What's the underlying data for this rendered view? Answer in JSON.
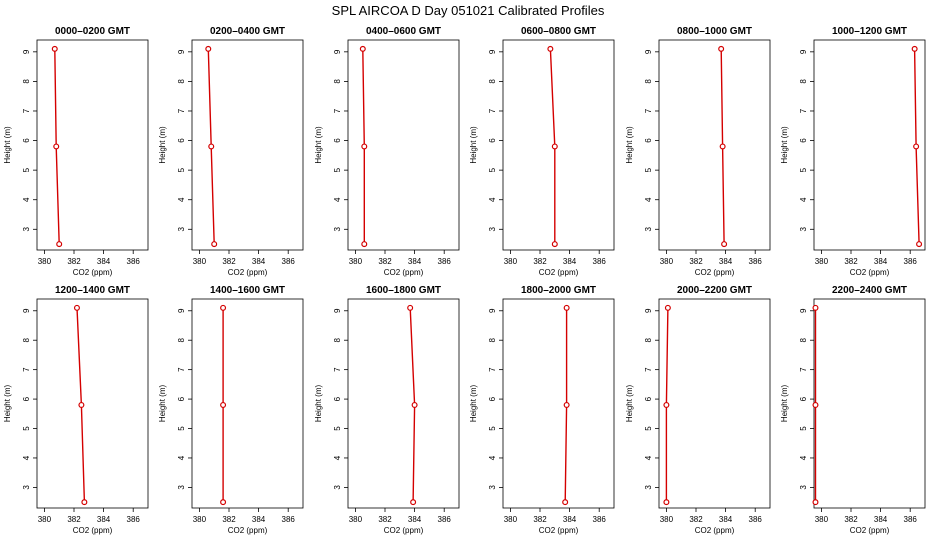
{
  "title": "SPL AIRCOA D  Day 051021  Calibrated Profiles",
  "chart_data": {
    "type": "line",
    "xlabel": "CO2 (ppm)",
    "ylabel": "Height (m)",
    "xlim": [
      379.5,
      387
    ],
    "ylim": [
      2.3,
      9.4
    ],
    "xticks": [
      380,
      382,
      384,
      386
    ],
    "yticks": [
      3,
      4,
      5,
      6,
      7,
      8,
      9
    ],
    "heights": [
      9.1,
      5.8,
      2.5
    ],
    "line_color": "#d40000",
    "panels": [
      {
        "title": "0000–0200 GMT",
        "co2": [
          380.7,
          380.8,
          381.0
        ]
      },
      {
        "title": "0200–0400 GMT",
        "co2": [
          380.6,
          380.8,
          381.0
        ]
      },
      {
        "title": "0400–0600 GMT",
        "co2": [
          380.5,
          380.6,
          380.6
        ]
      },
      {
        "title": "0600–0800 GMT",
        "co2": [
          382.7,
          383.0,
          383.0
        ]
      },
      {
        "title": "0800–1000 GMT",
        "co2": [
          383.7,
          383.8,
          383.9
        ]
      },
      {
        "title": "1000–1200 GMT",
        "co2": [
          386.3,
          386.4,
          386.6
        ]
      },
      {
        "title": "1200–1400 GMT",
        "co2": [
          382.2,
          382.5,
          382.7
        ]
      },
      {
        "title": "1400–1600 GMT",
        "co2": [
          381.6,
          381.6,
          381.6
        ]
      },
      {
        "title": "1600–1800 GMT",
        "co2": [
          383.7,
          384.0,
          383.9
        ]
      },
      {
        "title": "1800–2000 GMT",
        "co2": [
          383.8,
          383.8,
          383.7
        ]
      },
      {
        "title": "2000–2200 GMT",
        "co2": [
          380.1,
          380.0,
          380.0
        ]
      },
      {
        "title": "2200–2400 GMT",
        "co2": [
          379.6,
          379.6,
          379.6
        ]
      }
    ]
  }
}
